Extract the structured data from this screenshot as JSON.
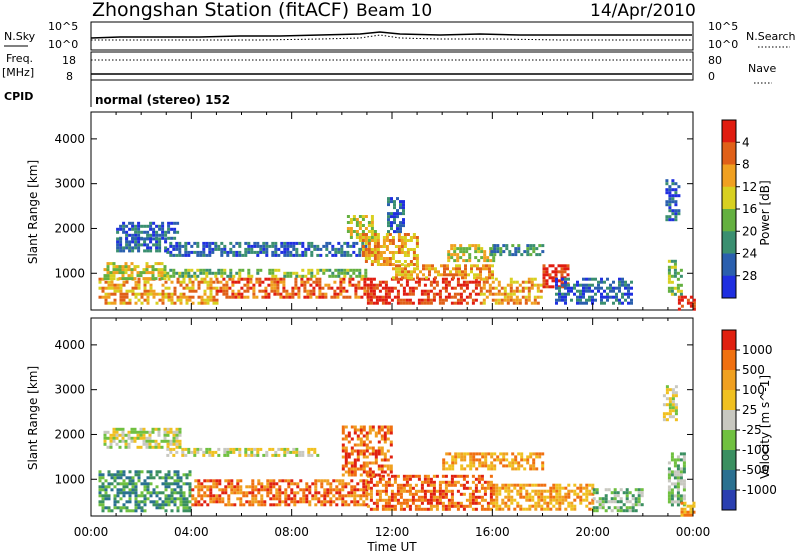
{
  "header": {
    "station": "Zhongshan Station (fitACF)",
    "beam": "Beam 10",
    "date": "14/Apr/2010"
  },
  "status_panel": {
    "left_labels": {
      "nsky": "N.Sky",
      "freq": "Freq.",
      "freq_unit": "[MHz]",
      "cpid": "CPID"
    },
    "right_labels": {
      "nsearch": "N.Search",
      "nave": "Nave"
    },
    "nsky_ticks": {
      "top": "10^5",
      "bottom": "10^0"
    },
    "nsearch_ticks": {
      "top": "10^5",
      "bottom": "10^0"
    },
    "freq_ticks": {
      "top": "18",
      "bottom": "8"
    },
    "nave_ticks": {
      "top": "80",
      "bottom": "0"
    },
    "cpid_text": "normal (stereo) 152"
  },
  "chart_data": [
    {
      "type": "heatmap",
      "name": "power",
      "ylabel": "Slant Range [km]",
      "yticks": [
        1000,
        2000,
        3000,
        4000
      ],
      "ylim": [
        180,
        4600
      ],
      "xlim": [
        0,
        24
      ],
      "colorbar": {
        "label": "Power [dB]",
        "tick_labels": [
          "4",
          "8",
          "12",
          "16",
          "20",
          "24",
          "28"
        ],
        "colors": [
          "#1f2fe0",
          "#2a5fae",
          "#3a8f70",
          "#64b040",
          "#d8d020",
          "#f0a020",
          "#e06018",
          "#e01c10"
        ]
      },
      "regions": [
        {
          "t0": 0.3,
          "t1": 5.0,
          "r0": 300,
          "r1": 900,
          "level": 5
        },
        {
          "t0": 5.0,
          "t1": 11.0,
          "r0": 450,
          "r1": 900,
          "level": 6
        },
        {
          "t0": 11.0,
          "t1": 15.5,
          "r0": 300,
          "r1": 900,
          "level": 7
        },
        {
          "t0": 15.5,
          "t1": 18.0,
          "r0": 350,
          "r1": 900,
          "level": 5
        },
        {
          "t0": 0.5,
          "t1": 3.0,
          "r0": 900,
          "r1": 1250,
          "level": 4
        },
        {
          "t0": 3.0,
          "t1": 11.0,
          "r0": 900,
          "r1": 1100,
          "level": 3
        },
        {
          "t0": 12.0,
          "t1": 16.0,
          "r0": 900,
          "r1": 1200,
          "level": 5
        },
        {
          "t0": 14.2,
          "t1": 16.0,
          "r0": 1300,
          "r1": 1650,
          "level": 4
        },
        {
          "t0": 15.8,
          "t1": 18.0,
          "r0": 1400,
          "r1": 1650,
          "level": 2
        },
        {
          "t0": 18.0,
          "t1": 19.0,
          "r0": 700,
          "r1": 1200,
          "level": 7
        },
        {
          "t0": 18.5,
          "t1": 21.5,
          "r0": 300,
          "r1": 900,
          "level": 1
        },
        {
          "t0": 1.0,
          "t1": 3.5,
          "r0": 1800,
          "r1": 2150,
          "level": 1
        },
        {
          "t0": 3.0,
          "t1": 11.0,
          "r0": 1400,
          "r1": 1700,
          "level": 1
        },
        {
          "t0": 1.0,
          "t1": 3.0,
          "r0": 1500,
          "r1": 1800,
          "level": 1
        },
        {
          "t0": 10.2,
          "t1": 11.3,
          "r0": 1700,
          "r1": 2300,
          "level": 4
        },
        {
          "t0": 11.8,
          "t1": 12.4,
          "r0": 1900,
          "r1": 2700,
          "level": 1
        },
        {
          "t0": 10.8,
          "t1": 13.0,
          "r0": 1200,
          "r1": 1900,
          "level": 5
        },
        {
          "t0": 22.9,
          "t1": 23.4,
          "r0": 2200,
          "r1": 3100,
          "level": 1
        },
        {
          "t0": 23.0,
          "t1": 23.5,
          "r0": 500,
          "r1": 1300,
          "level": 3
        },
        {
          "t0": 23.4,
          "t1": 24.0,
          "r0": 180,
          "r1": 500,
          "level": 7
        }
      ]
    },
    {
      "type": "heatmap",
      "name": "velocity",
      "ylabel": "Slant Range [km]",
      "yticks": [
        1000,
        2000,
        3000,
        4000
      ],
      "ylim": [
        180,
        4600
      ],
      "xlim": [
        0,
        24
      ],
      "xlabel": "Time UT",
      "xticks": [
        "00:00",
        "04:00",
        "08:00",
        "12:00",
        "16:00",
        "20:00",
        "00:00"
      ],
      "colorbar": {
        "label": "Velocity [m s^-1]",
        "tick_labels": [
          "1000",
          "500",
          "100",
          "25",
          "-25",
          "-100",
          "-500",
          "-1000"
        ],
        "colors": [
          "#2a3fb0",
          "#2a7090",
          "#3a8f60",
          "#70c040",
          "#c8c8c0",
          "#f0c020",
          "#f0a020",
          "#f07010",
          "#e02010"
        ]
      },
      "regions": [
        {
          "t0": 0.3,
          "t1": 4.0,
          "r0": 300,
          "r1": 1200,
          "level": 2
        },
        {
          "t0": 4.0,
          "t1": 11.0,
          "r0": 450,
          "r1": 1000,
          "level": 7
        },
        {
          "t0": 11.0,
          "t1": 16.0,
          "r0": 300,
          "r1": 1100,
          "level": 7
        },
        {
          "t0": 16.0,
          "t1": 20.0,
          "r0": 300,
          "r1": 900,
          "level": 6
        },
        {
          "t0": 0.5,
          "t1": 3.5,
          "r0": 1700,
          "r1": 2150,
          "level": 4
        },
        {
          "t0": 3.0,
          "t1": 9.0,
          "r0": 1500,
          "r1": 1700,
          "level": 4
        },
        {
          "t0": 10.0,
          "t1": 12.0,
          "r0": 1100,
          "r1": 2200,
          "level": 7
        },
        {
          "t0": 14.0,
          "t1": 18.0,
          "r0": 1200,
          "r1": 1600,
          "level": 6
        },
        {
          "t0": 20.0,
          "t1": 22.0,
          "r0": 300,
          "r1": 800,
          "level": 3
        },
        {
          "t0": 22.8,
          "t1": 23.3,
          "r0": 2300,
          "r1": 3100,
          "level": 4
        },
        {
          "t0": 23.0,
          "t1": 23.6,
          "r0": 400,
          "r1": 1600,
          "level": 3
        },
        {
          "t0": 23.5,
          "t1": 24.0,
          "r0": 180,
          "r1": 500,
          "level": 6
        }
      ]
    }
  ]
}
